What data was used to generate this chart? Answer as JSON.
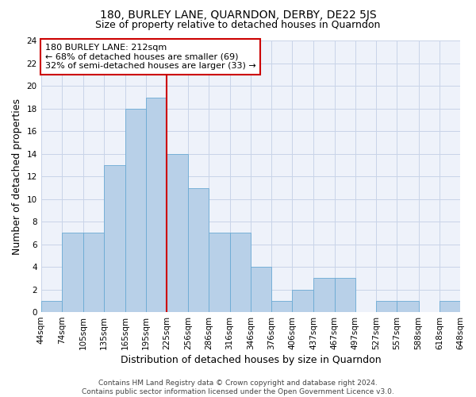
{
  "title": "180, BURLEY LANE, QUARNDON, DERBY, DE22 5JS",
  "subtitle": "Size of property relative to detached houses in Quarndon",
  "xlabel": "Distribution of detached houses by size in Quarndon",
  "ylabel": "Number of detached properties",
  "bar_color": "#b8d0e8",
  "bar_edge_color": "#6aaad4",
  "background_color": "#eef2fa",
  "grid_color": "#c8d4e8",
  "annotation_box_color": "#cc0000",
  "vline_color": "#cc0000",
  "annotation_text": "180 BURLEY LANE: 212sqm\n← 68% of detached houses are smaller (69)\n32% of semi-detached houses are larger (33) →",
  "bin_edges": [
    44,
    74,
    105,
    135,
    165,
    195,
    225,
    256,
    286,
    316,
    346,
    376,
    406,
    437,
    467,
    497,
    527,
    557,
    588,
    618,
    648
  ],
  "bin_labels": [
    "44sqm",
    "74sqm",
    "105sqm",
    "135sqm",
    "165sqm",
    "195sqm",
    "225sqm",
    "256sqm",
    "286sqm",
    "316sqm",
    "346sqm",
    "376sqm",
    "406sqm",
    "437sqm",
    "467sqm",
    "497sqm",
    "527sqm",
    "557sqm",
    "588sqm",
    "618sqm",
    "648sqm"
  ],
  "counts": [
    1,
    7,
    7,
    13,
    18,
    19,
    14,
    11,
    7,
    7,
    4,
    1,
    2,
    3,
    3,
    0,
    1,
    1,
    0,
    1
  ],
  "ylim": [
    0,
    24
  ],
  "yticks": [
    0,
    2,
    4,
    6,
    8,
    10,
    12,
    14,
    16,
    18,
    20,
    22,
    24
  ],
  "footer_text": "Contains HM Land Registry data © Crown copyright and database right 2024.\nContains public sector information licensed under the Open Government Licence v3.0.",
  "title_fontsize": 10,
  "subtitle_fontsize": 9,
  "annotation_fontsize": 8,
  "axis_label_fontsize": 9,
  "tick_fontsize": 7.5,
  "footer_fontsize": 6.5
}
